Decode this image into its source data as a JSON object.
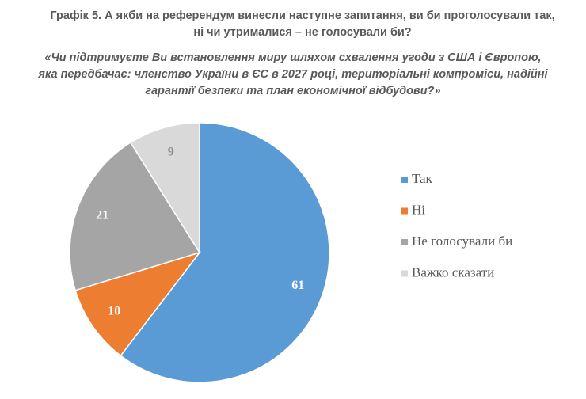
{
  "chart_data": {
    "type": "pie",
    "title_lines": [
      "Графік 5. А якби на референдум винесли наступне запитання, ви би проголосували так,",
      "ні чи утрималися – не голосували би?"
    ],
    "subtitle_lines": [
      "«Чи підтримуєте Ви встановлення миру шляхом схвалення угоди з США і Європою,",
      "яка передбачає: членство України в ЄС в 2027 році, територіальні компроміси, надійні",
      "гарантії безпеки та план економічної відбудови?»"
    ],
    "categories": [
      "Так",
      "Ні",
      "Не голосували би",
      "Важко сказати"
    ],
    "values": [
      61,
      10,
      21,
      9
    ],
    "colors": [
      "#5b9bd5",
      "#ed7d31",
      "#a5a5a5",
      "#d9d9d9"
    ],
    "label_colors": [
      "#ffffff",
      "#ffffff",
      "#ffffff",
      "#8c8c8c"
    ],
    "legend": "right"
  }
}
